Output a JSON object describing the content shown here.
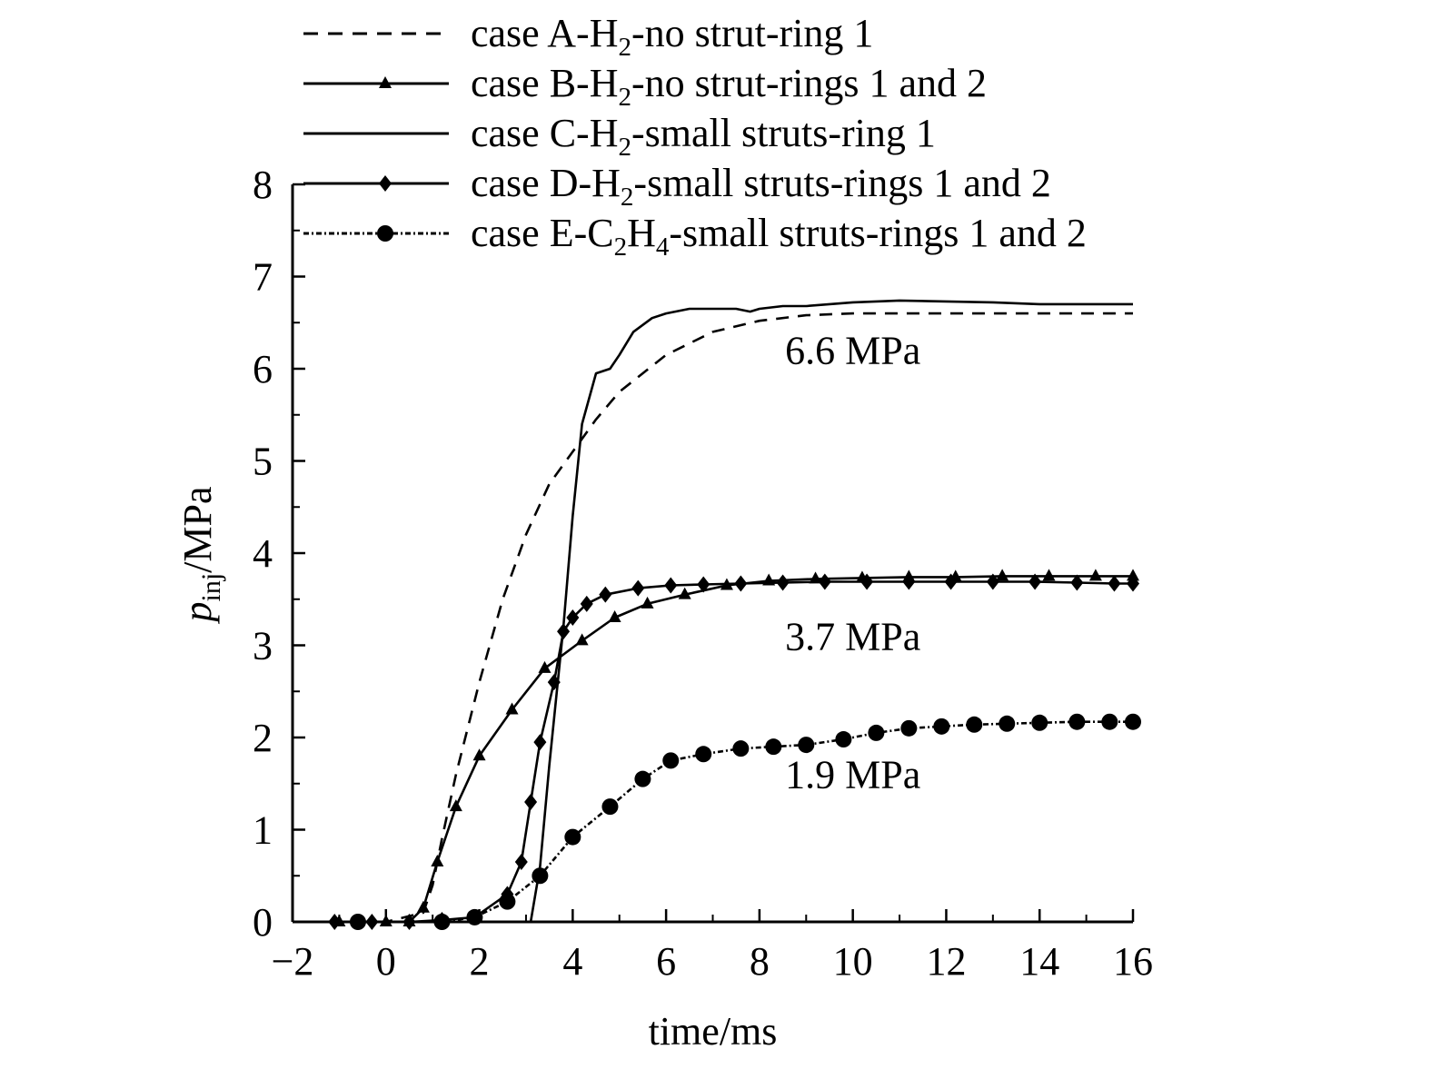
{
  "chart_data": {
    "type": "line",
    "xlabel": "time/ms",
    "ylabel": {
      "base": "p",
      "subscript": "inj",
      "suffix": "/MPa"
    },
    "xlim": [
      -2,
      16
    ],
    "ylim": [
      0,
      8
    ],
    "x_ticks": [
      -2,
      0,
      2,
      4,
      6,
      8,
      10,
      12,
      14,
      16
    ],
    "y_ticks": [
      0,
      1,
      2,
      3,
      4,
      5,
      6,
      7,
      8
    ],
    "x_tick_labels": [
      "−2",
      "0",
      "2",
      "4",
      "6",
      "8",
      "10",
      "12",
      "14",
      "16"
    ],
    "y_tick_labels": [
      "0",
      "1",
      "2",
      "3",
      "4",
      "5",
      "6",
      "7",
      "8"
    ],
    "grid": false,
    "legend_position": "top",
    "annotations": [
      {
        "text": "6.6 MPa",
        "x": 10.0,
        "y": 6.2
      },
      {
        "text": "3.7 MPa",
        "x": 10.0,
        "y": 3.1
      },
      {
        "text": "1.9 MPa",
        "x": 10.0,
        "y": 1.6
      }
    ],
    "series": [
      {
        "name": "case A-H2-no strut-ring 1",
        "legend_parts": [
          {
            "t": "case A-H"
          },
          {
            "t": "2",
            "sub": true
          },
          {
            "t": "-no strut-ring 1"
          }
        ],
        "style": "dashed",
        "marker": "none",
        "x": [
          -2,
          0,
          0.8,
          1.0,
          1.2,
          1.5,
          2.0,
          2.5,
          3.0,
          3.5,
          4.0,
          4.5,
          5.0,
          6.0,
          7.0,
          8.0,
          9.0,
          10.0,
          12.0,
          14.0,
          16.0
        ],
        "y": [
          0,
          0,
          0.1,
          0.4,
          0.9,
          1.6,
          2.6,
          3.5,
          4.2,
          4.75,
          5.1,
          5.45,
          5.75,
          6.15,
          6.4,
          6.52,
          6.58,
          6.6,
          6.6,
          6.6,
          6.6
        ]
      },
      {
        "name": "case B-H2-no strut-rings 1 and 2",
        "legend_parts": [
          {
            "t": "case B-H"
          },
          {
            "t": "2",
            "sub": true
          },
          {
            "t": "-no strut-rings 1 and 2"
          }
        ],
        "style": "solid",
        "marker": "triangle",
        "x": [
          -2,
          -1.0,
          0.0,
          0.5,
          0.8,
          1.1,
          1.5,
          2.0,
          2.7,
          3.4,
          4.2,
          4.9,
          5.6,
          6.4,
          7.3,
          8.2,
          9.2,
          10.2,
          11.2,
          12.2,
          13.2,
          14.2,
          15.2,
          16.0
        ],
        "y": [
          0,
          0,
          0,
          0,
          0.15,
          0.65,
          1.25,
          1.8,
          2.3,
          2.75,
          3.05,
          3.3,
          3.45,
          3.55,
          3.65,
          3.7,
          3.72,
          3.73,
          3.74,
          3.74,
          3.75,
          3.75,
          3.75,
          3.75
        ]
      },
      {
        "name": "case C-H2-small struts-ring 1",
        "legend_parts": [
          {
            "t": "case C-H"
          },
          {
            "t": "2",
            "sub": true
          },
          {
            "t": "-small struts-ring 1"
          }
        ],
        "style": "solid",
        "marker": "none",
        "x": [
          -2,
          3.1,
          3.3,
          3.5,
          3.8,
          4.0,
          4.2,
          4.5,
          4.8,
          5.0,
          5.3,
          5.7,
          6.0,
          6.5,
          7.0,
          7.5,
          7.8,
          8.0,
          8.5,
          9.0,
          10.0,
          11.0,
          12.0,
          13.0,
          14.0,
          15.0,
          16.0
        ],
        "y": [
          0,
          0,
          0.6,
          1.7,
          3.2,
          4.4,
          5.4,
          5.95,
          6.0,
          6.15,
          6.4,
          6.55,
          6.6,
          6.65,
          6.65,
          6.65,
          6.62,
          6.65,
          6.68,
          6.68,
          6.72,
          6.74,
          6.73,
          6.72,
          6.7,
          6.7,
          6.7
        ]
      },
      {
        "name": "case D-H2-small struts-rings 1 and 2",
        "legend_parts": [
          {
            "t": "case D-H"
          },
          {
            "t": "2",
            "sub": true
          },
          {
            "t": "-small struts-rings 1 and 2"
          }
        ],
        "style": "solid",
        "marker": "diamond",
        "x": [
          -2,
          -1.1,
          -0.3,
          0.5,
          1.2,
          1.9,
          2.6,
          2.9,
          3.1,
          3.3,
          3.6,
          3.8,
          4.0,
          4.3,
          4.7,
          5.4,
          6.1,
          6.8,
          7.6,
          8.5,
          9.4,
          10.3,
          11.2,
          12.1,
          13.0,
          13.9,
          14.8,
          15.6,
          16.0
        ],
        "y": [
          0,
          0,
          0,
          0,
          0.02,
          0.05,
          0.3,
          0.65,
          1.3,
          1.95,
          2.6,
          3.15,
          3.3,
          3.45,
          3.55,
          3.62,
          3.65,
          3.66,
          3.67,
          3.68,
          3.69,
          3.69,
          3.69,
          3.69,
          3.69,
          3.69,
          3.68,
          3.67,
          3.67
        ]
      },
      {
        "name": "case E-C2H4-small struts-rings 1 and 2",
        "legend_parts": [
          {
            "t": "case E-C"
          },
          {
            "t": "2",
            "sub": true
          },
          {
            "t": "H"
          },
          {
            "t": "4",
            "sub": true
          },
          {
            "t": "-small struts-rings 1 and 2"
          }
        ],
        "style": "dashdot",
        "marker": "circle",
        "x": [
          -2,
          -0.6,
          1.2,
          1.9,
          2.6,
          3.3,
          4.0,
          4.8,
          5.5,
          6.1,
          6.8,
          7.6,
          8.3,
          9.0,
          9.8,
          10.5,
          11.2,
          11.9,
          12.6,
          13.3,
          14.0,
          14.8,
          15.5,
          16.0
        ],
        "y": [
          0,
          0,
          0,
          0.05,
          0.22,
          0.5,
          0.92,
          1.25,
          1.55,
          1.75,
          1.82,
          1.88,
          1.9,
          1.92,
          1.98,
          2.05,
          2.1,
          2.12,
          2.14,
          2.15,
          2.16,
          2.17,
          2.17,
          2.17
        ]
      }
    ]
  }
}
